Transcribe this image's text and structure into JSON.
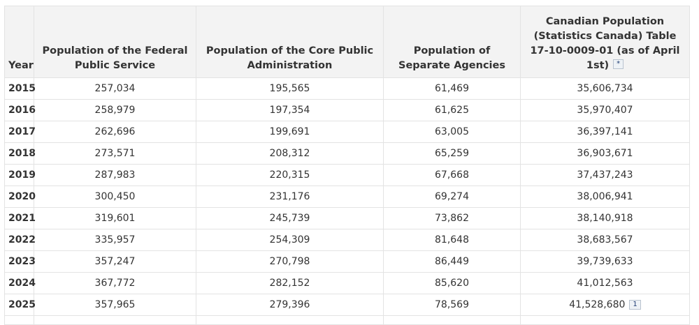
{
  "table": {
    "headers": {
      "year": "Year",
      "fps": "Population of the Federal Public Service",
      "cpa": "Population of the Core Public Administration",
      "sa": "Population of Separate Agencies",
      "canpop": "Canadian Population (Statistics Canada) Table 17-10-0009-01 (as of April 1st)",
      "canpop_note": "*"
    },
    "rows": [
      {
        "year": "2015",
        "fps": "257,034",
        "cpa": "195,565",
        "sa": "61,469",
        "canpop": "35,606,734"
      },
      {
        "year": "2016",
        "fps": "258,979",
        "cpa": "197,354",
        "sa": "61,625",
        "canpop": "35,970,407"
      },
      {
        "year": "2017",
        "fps": "262,696",
        "cpa": "199,691",
        "sa": "63,005",
        "canpop": "36,397,141"
      },
      {
        "year": "2018",
        "fps": "273,571",
        "cpa": "208,312",
        "sa": "65,259",
        "canpop": "36,903,671"
      },
      {
        "year": "2019",
        "fps": "287,983",
        "cpa": "220,315",
        "sa": "67,668",
        "canpop": "37,437,243"
      },
      {
        "year": "2020",
        "fps": "300,450",
        "cpa": "231,176",
        "sa": "69,274",
        "canpop": "38,006,941"
      },
      {
        "year": "2021",
        "fps": "319,601",
        "cpa": "245,739",
        "sa": "73,862",
        "canpop": "38,140,918"
      },
      {
        "year": "2022",
        "fps": "335,957",
        "cpa": "254,309",
        "sa": "81,648",
        "canpop": "38,683,567"
      },
      {
        "year": "2023",
        "fps": "357,247",
        "cpa": "270,798",
        "sa": "86,449",
        "canpop": "39,739,633"
      },
      {
        "year": "2024",
        "fps": "367,772",
        "cpa": "282,152",
        "sa": "85,620",
        "canpop": "41,012,563"
      },
      {
        "year": "2025",
        "fps": "357,965",
        "cpa": "279,396",
        "sa": "78,569",
        "canpop": "41,528,680",
        "note": "1"
      }
    ]
  }
}
